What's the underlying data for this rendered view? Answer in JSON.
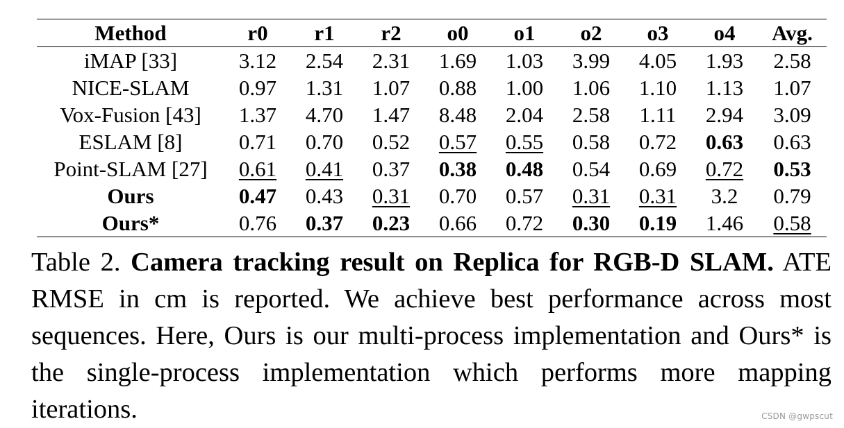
{
  "table": {
    "headers": [
      "Method",
      "r0",
      "r1",
      "r2",
      "o0",
      "o1",
      "o2",
      "o3",
      "o4",
      "Avg."
    ],
    "rows": [
      {
        "method": "iMAP [33]",
        "values": [
          "3.12",
          "2.54",
          "2.31",
          "1.69",
          "1.03",
          "3.99",
          "4.05",
          "1.93",
          "2.58"
        ],
        "method_bold": false,
        "bold": [],
        "underline": []
      },
      {
        "method": "NICE-SLAM",
        "values": [
          "0.97",
          "1.31",
          "1.07",
          "0.88",
          "1.00",
          "1.06",
          "1.10",
          "1.13",
          "1.07"
        ],
        "method_bold": false,
        "bold": [],
        "underline": []
      },
      {
        "method": "Vox-Fusion [43]",
        "values": [
          "1.37",
          "4.70",
          "1.47",
          "8.48",
          "2.04",
          "2.58",
          "1.11",
          "2.94",
          "3.09"
        ],
        "method_bold": false,
        "bold": [],
        "underline": []
      },
      {
        "method": "ESLAM [8]",
        "values": [
          "0.71",
          "0.70",
          "0.52",
          "0.57",
          "0.55",
          "0.58",
          "0.72",
          "0.63",
          "0.63"
        ],
        "method_bold": false,
        "bold": [
          7
        ],
        "underline": [
          3,
          4
        ]
      },
      {
        "method": "Point-SLAM [27]",
        "values": [
          "0.61",
          "0.41",
          "0.37",
          "0.38",
          "0.48",
          "0.54",
          "0.69",
          "0.72",
          "0.53"
        ],
        "method_bold": false,
        "bold": [
          3,
          4,
          8
        ],
        "underline": [
          0,
          1,
          7
        ]
      },
      {
        "method": "Ours",
        "values": [
          "0.47",
          "0.43",
          "0.31",
          "0.70",
          "0.57",
          "0.31",
          "0.31",
          "3.2",
          "0.79"
        ],
        "method_bold": true,
        "bold": [
          0
        ],
        "underline": [
          2,
          5,
          6
        ]
      },
      {
        "method": "Ours*",
        "values": [
          "0.76",
          "0.37",
          "0.23",
          "0.66",
          "0.72",
          "0.30",
          "0.19",
          "1.46",
          "0.58"
        ],
        "method_bold": true,
        "bold": [
          1,
          2,
          5,
          6
        ],
        "underline": [
          8
        ]
      }
    ]
  },
  "caption": {
    "label": "Table 2.",
    "title": "Camera tracking result on Replica for RGB-D SLAM.",
    "body": "ATE RMSE in cm is reported. We achieve best performance across most sequences. Here, Ours is our multi-process implementation and Ours* is the single-process implementation which performs more mapping iterations."
  },
  "watermark": "CSDN @gwpscut"
}
